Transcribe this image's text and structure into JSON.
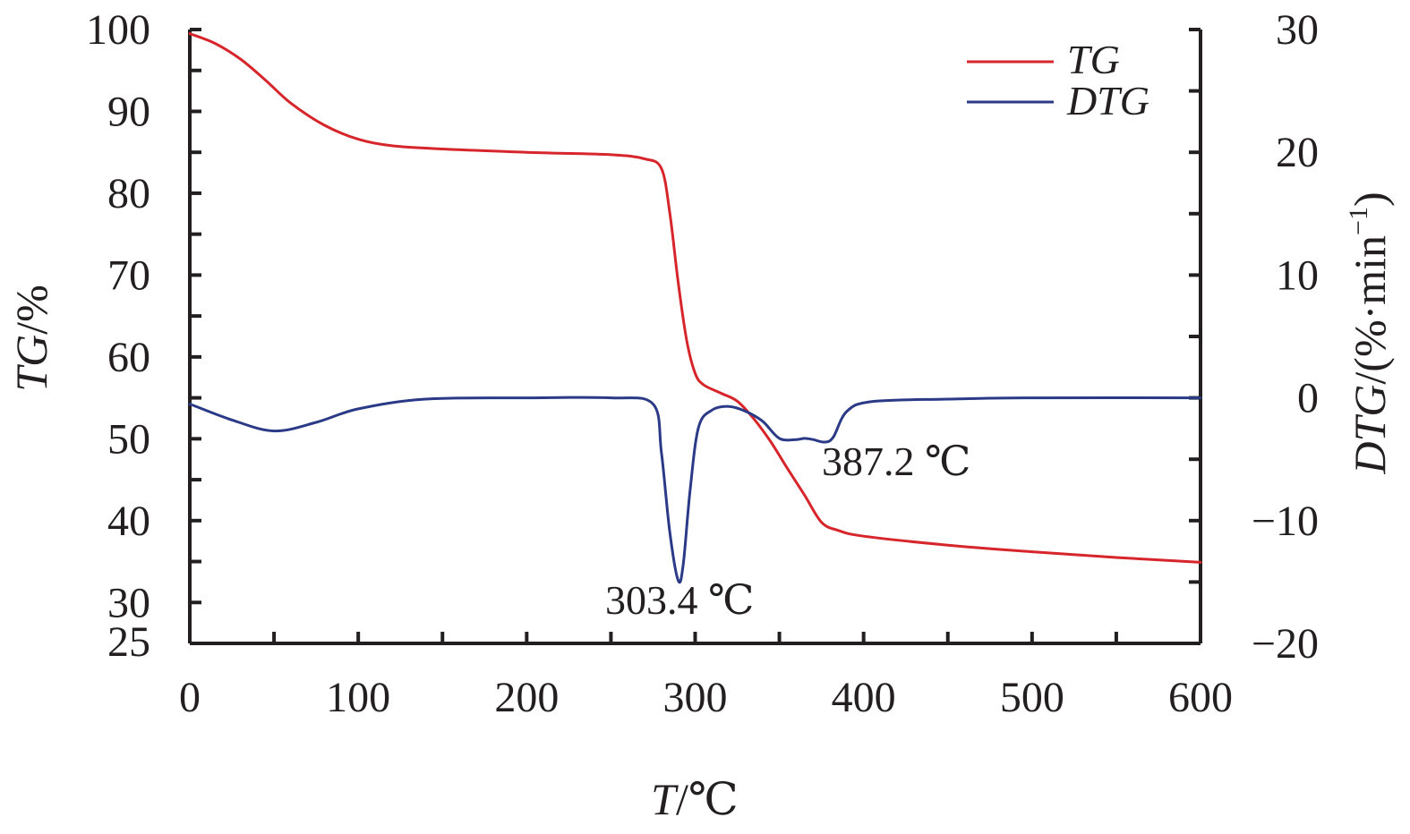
{
  "chart_data": {
    "type": "line",
    "x_axis": {
      "label_var": "T",
      "label_unit": "/℃",
      "range": [
        0,
        600
      ],
      "ticks": [
        0,
        100,
        200,
        300,
        400,
        500,
        600
      ],
      "tick_labels": [
        "0",
        "100",
        "200",
        "300",
        "400",
        "500",
        "600"
      ]
    },
    "y_left": {
      "label_var": "TG",
      "label_unit": "/%",
      "range": [
        25,
        100
      ],
      "ticks": [
        25,
        30,
        40,
        50,
        60,
        70,
        80,
        90,
        100
      ],
      "tick_labels": [
        "25",
        "30",
        "40",
        "50",
        "60",
        "70",
        "80",
        "90",
        "100"
      ]
    },
    "y_right": {
      "label_var": "DTG",
      "label_unit": "/(%·min",
      "label_sup": "−1",
      "label_close": ")",
      "range": [
        -20,
        30
      ],
      "ticks": [
        -20,
        -10,
        0,
        10,
        20,
        30
      ],
      "tick_labels": [
        "−20",
        "−10",
        "0",
        "10",
        "20",
        "30"
      ]
    },
    "legend": {
      "position": "top-right"
    },
    "series": [
      {
        "name": "TG",
        "axis": "left",
        "color": "#d7262b",
        "x": [
          0,
          15,
          30,
          45,
          60,
          80,
          100,
          120,
          150,
          200,
          250,
          270,
          280,
          285,
          290,
          295,
          300,
          305,
          315,
          325,
          335,
          345,
          355,
          365,
          375,
          385,
          400,
          450,
          500,
          550,
          600
        ],
        "y": [
          99.5,
          98.3,
          96.4,
          93.8,
          91.0,
          88.3,
          86.6,
          85.8,
          85.4,
          85.0,
          84.7,
          84.2,
          83.0,
          77.5,
          69.0,
          62.0,
          58.0,
          56.6,
          55.6,
          54.6,
          52.4,
          49.6,
          46.3,
          43.1,
          39.8,
          38.8,
          38.1,
          37.0,
          36.2,
          35.5,
          34.9
        ]
      },
      {
        "name": "DTG",
        "axis": "right",
        "color": "#2b3a87",
        "x": [
          0,
          25,
          50,
          75,
          100,
          140,
          200,
          250,
          275,
          280,
          285,
          290,
          293,
          297,
          302,
          310,
          320,
          330,
          340,
          350,
          360,
          365,
          370,
          377,
          382,
          390,
          405,
          450,
          500,
          600
        ],
        "y": [
          -0.5,
          -1.8,
          -2.7,
          -2.0,
          -0.9,
          -0.1,
          0.0,
          0.0,
          -0.5,
          -4.5,
          -11.0,
          -14.9,
          -13.5,
          -7.5,
          -2.4,
          -1.0,
          -0.7,
          -1.1,
          -1.9,
          -3.3,
          -3.4,
          -3.3,
          -3.4,
          -3.6,
          -3.2,
          -1.1,
          -0.3,
          -0.1,
          0.0,
          0.0
        ]
      }
    ],
    "annotations": [
      {
        "text": "303.4 ℃"
      },
      {
        "text": "387.2 ℃"
      }
    ]
  }
}
